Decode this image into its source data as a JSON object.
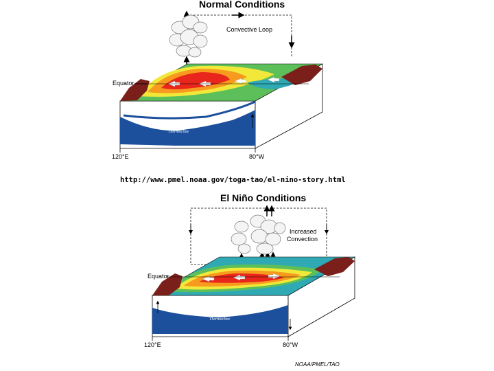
{
  "normal": {
    "title": "Normal Conditions",
    "loop_label": "Convective Loop",
    "equator_label": "Equator",
    "lon_west": "120°E",
    "lon_east": "80°W",
    "thermocline_label": "Thermocline"
  },
  "source_url": "http://www.pmel.noaa.gov/toga-tao/el-nino-story.html",
  "elnino": {
    "title": "El Niño Conditions",
    "convection_line1": "Increased",
    "convection_line2": "Convection",
    "equator_label": "Equator",
    "lon_west": "120°E",
    "lon_east": "80°W",
    "thermocline_label": "Thermocline"
  },
  "credit": "NOAA/PMEL/TAO",
  "colors": {
    "ocean_deep": "#1c4f9c",
    "sst_warm": "#e8261c",
    "sst_orange": "#f79a1e",
    "sst_yellow": "#f2e83a",
    "sst_green": "#5cbf5a",
    "sst_cool": "#2fa9b4",
    "land": "#7a1f1a"
  }
}
